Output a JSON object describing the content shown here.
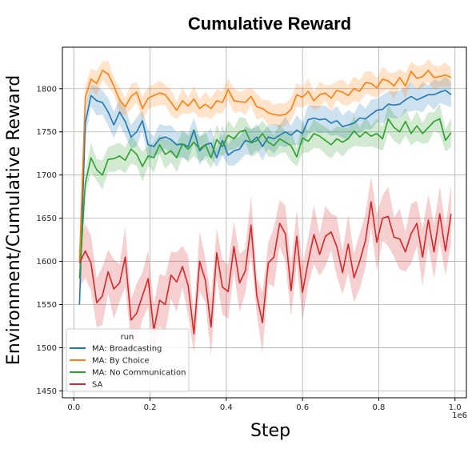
{
  "chart_data": {
    "type": "line",
    "title": "Cumulative Reward",
    "xlabel": "Step",
    "ylabel": "Environment/Cumulative Reward",
    "x_offset_label": "1e6",
    "xlim": [
      -0.03,
      1.03
    ],
    "ylim": [
      1442,
      1848
    ],
    "xticks": [
      0.0,
      0.2,
      0.4,
      0.6,
      0.8,
      1.0
    ],
    "xtick_labels": [
      "0.0",
      "0.2",
      "0.4",
      "0.6",
      "0.8",
      "1.0"
    ],
    "yticks": [
      1450,
      1500,
      1550,
      1600,
      1650,
      1700,
      1750,
      1800
    ],
    "ytick_labels": [
      "1450",
      "1500",
      "1550",
      "1600",
      "1650",
      "1700",
      "1750",
      "1800"
    ],
    "grid": true,
    "legend": {
      "title": "run",
      "position": "lower-left"
    },
    "x": [
      0.015,
      0.03,
      0.045,
      0.06,
      0.075,
      0.09,
      0.105,
      0.12,
      0.135,
      0.15,
      0.165,
      0.18,
      0.195,
      0.21,
      0.225,
      0.24,
      0.255,
      0.27,
      0.285,
      0.3,
      0.315,
      0.33,
      0.345,
      0.36,
      0.375,
      0.39,
      0.405,
      0.42,
      0.435,
      0.45,
      0.465,
      0.48,
      0.495,
      0.51,
      0.525,
      0.54,
      0.555,
      0.57,
      0.585,
      0.6,
      0.615,
      0.63,
      0.645,
      0.66,
      0.675,
      0.69,
      0.705,
      0.72,
      0.735,
      0.75,
      0.765,
      0.78,
      0.795,
      0.81,
      0.825,
      0.84,
      0.855,
      0.87,
      0.885,
      0.9,
      0.915,
      0.93,
      0.945,
      0.96,
      0.975,
      0.99
    ],
    "series": [
      {
        "name": "MA: Broadcasting",
        "color": "#1f77b4",
        "band": 14,
        "values": [
          1550,
          1760,
          1792,
          1786,
          1784,
          1773,
          1758,
          1773,
          1762,
          1744,
          1750,
          1763,
          1735,
          1733,
          1742,
          1744,
          1741,
          1735,
          1736,
          1733,
          1752,
          1728,
          1735,
          1737,
          1720,
          1740,
          1723,
          1728,
          1730,
          1740,
          1738,
          1744,
          1733,
          1744,
          1742,
          1746,
          1750,
          1746,
          1752,
          1748,
          1764,
          1766,
          1764,
          1765,
          1760,
          1763,
          1756,
          1758,
          1760,
          1766,
          1765,
          1770,
          1775,
          1776,
          1782,
          1781,
          1782,
          1787,
          1791,
          1787,
          1790,
          1793,
          1793,
          1796,
          1798,
          1793
        ]
      },
      {
        "name": "MA: By Choice",
        "color": "#ff7f0e",
        "band": 12,
        "values": [
          1600,
          1790,
          1811,
          1806,
          1821,
          1817,
          1803,
          1787,
          1779,
          1791,
          1796,
          1777,
          1789,
          1792,
          1795,
          1793,
          1784,
          1775,
          1786,
          1780,
          1788,
          1777,
          1782,
          1777,
          1786,
          1784,
          1799,
          1786,
          1785,
          1784,
          1791,
          1779,
          1777,
          1772,
          1770,
          1769,
          1770,
          1776,
          1793,
          1790,
          1797,
          1786,
          1793,
          1795,
          1789,
          1798,
          1796,
          1792,
          1800,
          1797,
          1807,
          1806,
          1801,
          1811,
          1809,
          1803,
          1813,
          1803,
          1820,
          1812,
          1814,
          1821,
          1813,
          1814,
          1816,
          1813
        ]
      },
      {
        "name": "MA: No Communication",
        "color": "#2ca02c",
        "band": 14,
        "values": [
          1580,
          1690,
          1720,
          1706,
          1700,
          1718,
          1719,
          1722,
          1717,
          1730,
          1724,
          1710,
          1722,
          1720,
          1735,
          1724,
          1728,
          1720,
          1736,
          1730,
          1738,
          1730,
          1735,
          1720,
          1741,
          1733,
          1746,
          1742,
          1750,
          1752,
          1737,
          1740,
          1748,
          1738,
          1734,
          1742,
          1738,
          1734,
          1721,
          1743,
          1739,
          1748,
          1745,
          1740,
          1735,
          1742,
          1738,
          1742,
          1751,
          1744,
          1750,
          1745,
          1748,
          1742,
          1765,
          1755,
          1750,
          1762,
          1748,
          1757,
          1748,
          1755,
          1762,
          1765,
          1740,
          1749
        ]
      },
      {
        "name": "SA",
        "color": "#d62728",
        "band": 28,
        "values": [
          1598,
          1612,
          1598,
          1552,
          1560,
          1588,
          1568,
          1575,
          1605,
          1532,
          1540,
          1560,
          1580,
          1520,
          1555,
          1550,
          1584,
          1576,
          1594,
          1572,
          1516,
          1600,
          1578,
          1524,
          1610,
          1570,
          1565,
          1617,
          1575,
          1589,
          1642,
          1560,
          1529,
          1598,
          1605,
          1644,
          1632,
          1566,
          1629,
          1564,
          1600,
          1631,
          1608,
          1629,
          1634,
          1617,
          1587,
          1620,
          1581,
          1600,
          1624,
          1669,
          1622,
          1650,
          1652,
          1628,
          1626,
          1611,
          1632,
          1644,
          1605,
          1648,
          1611,
          1655,
          1612,
          1655
        ]
      }
    ]
  }
}
